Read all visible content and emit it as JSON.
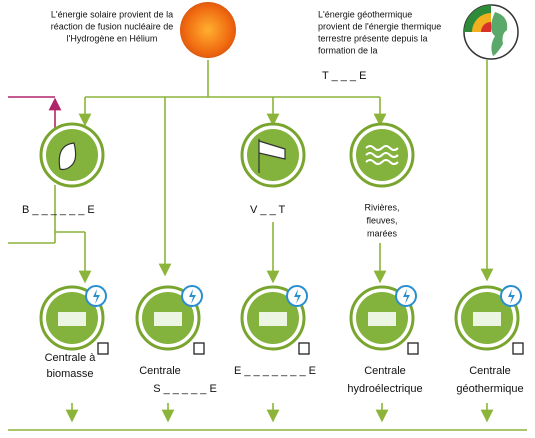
{
  "sun": {
    "lines": [
      "L'énergie solaire provient de la",
      "réaction de fusion nucléaire de",
      "l'Hydrogène en Hélium"
    ]
  },
  "geothermal": {
    "lines": [
      "L'énergie géothermique",
      "provient de l'énergie thermique",
      "terrestre présente depuis la",
      "formation de la"
    ],
    "blank": "T _ _ _ E"
  },
  "sources": [
    {
      "lines": [
        "B _ _ _ _ _ _ E"
      ]
    },
    {
      "lines": [
        "V _ _ T"
      ]
    },
    {
      "lines": [
        "Rivières,",
        "fleuves,",
        "marées"
      ]
    }
  ],
  "plants": [
    {
      "lines": [
        "Centrale à",
        "biomasse"
      ]
    },
    {
      "lines": [
        "Centrale",
        "S _ _ _ _ _ E"
      ]
    },
    {
      "lines": [
        "E _ _ _ _ _ _ _ E"
      ]
    },
    {
      "lines": [
        "Centrale",
        "hydroélectrique"
      ]
    },
    {
      "lines": [
        "Centrale",
        "géothermique"
      ]
    }
  ]
}
